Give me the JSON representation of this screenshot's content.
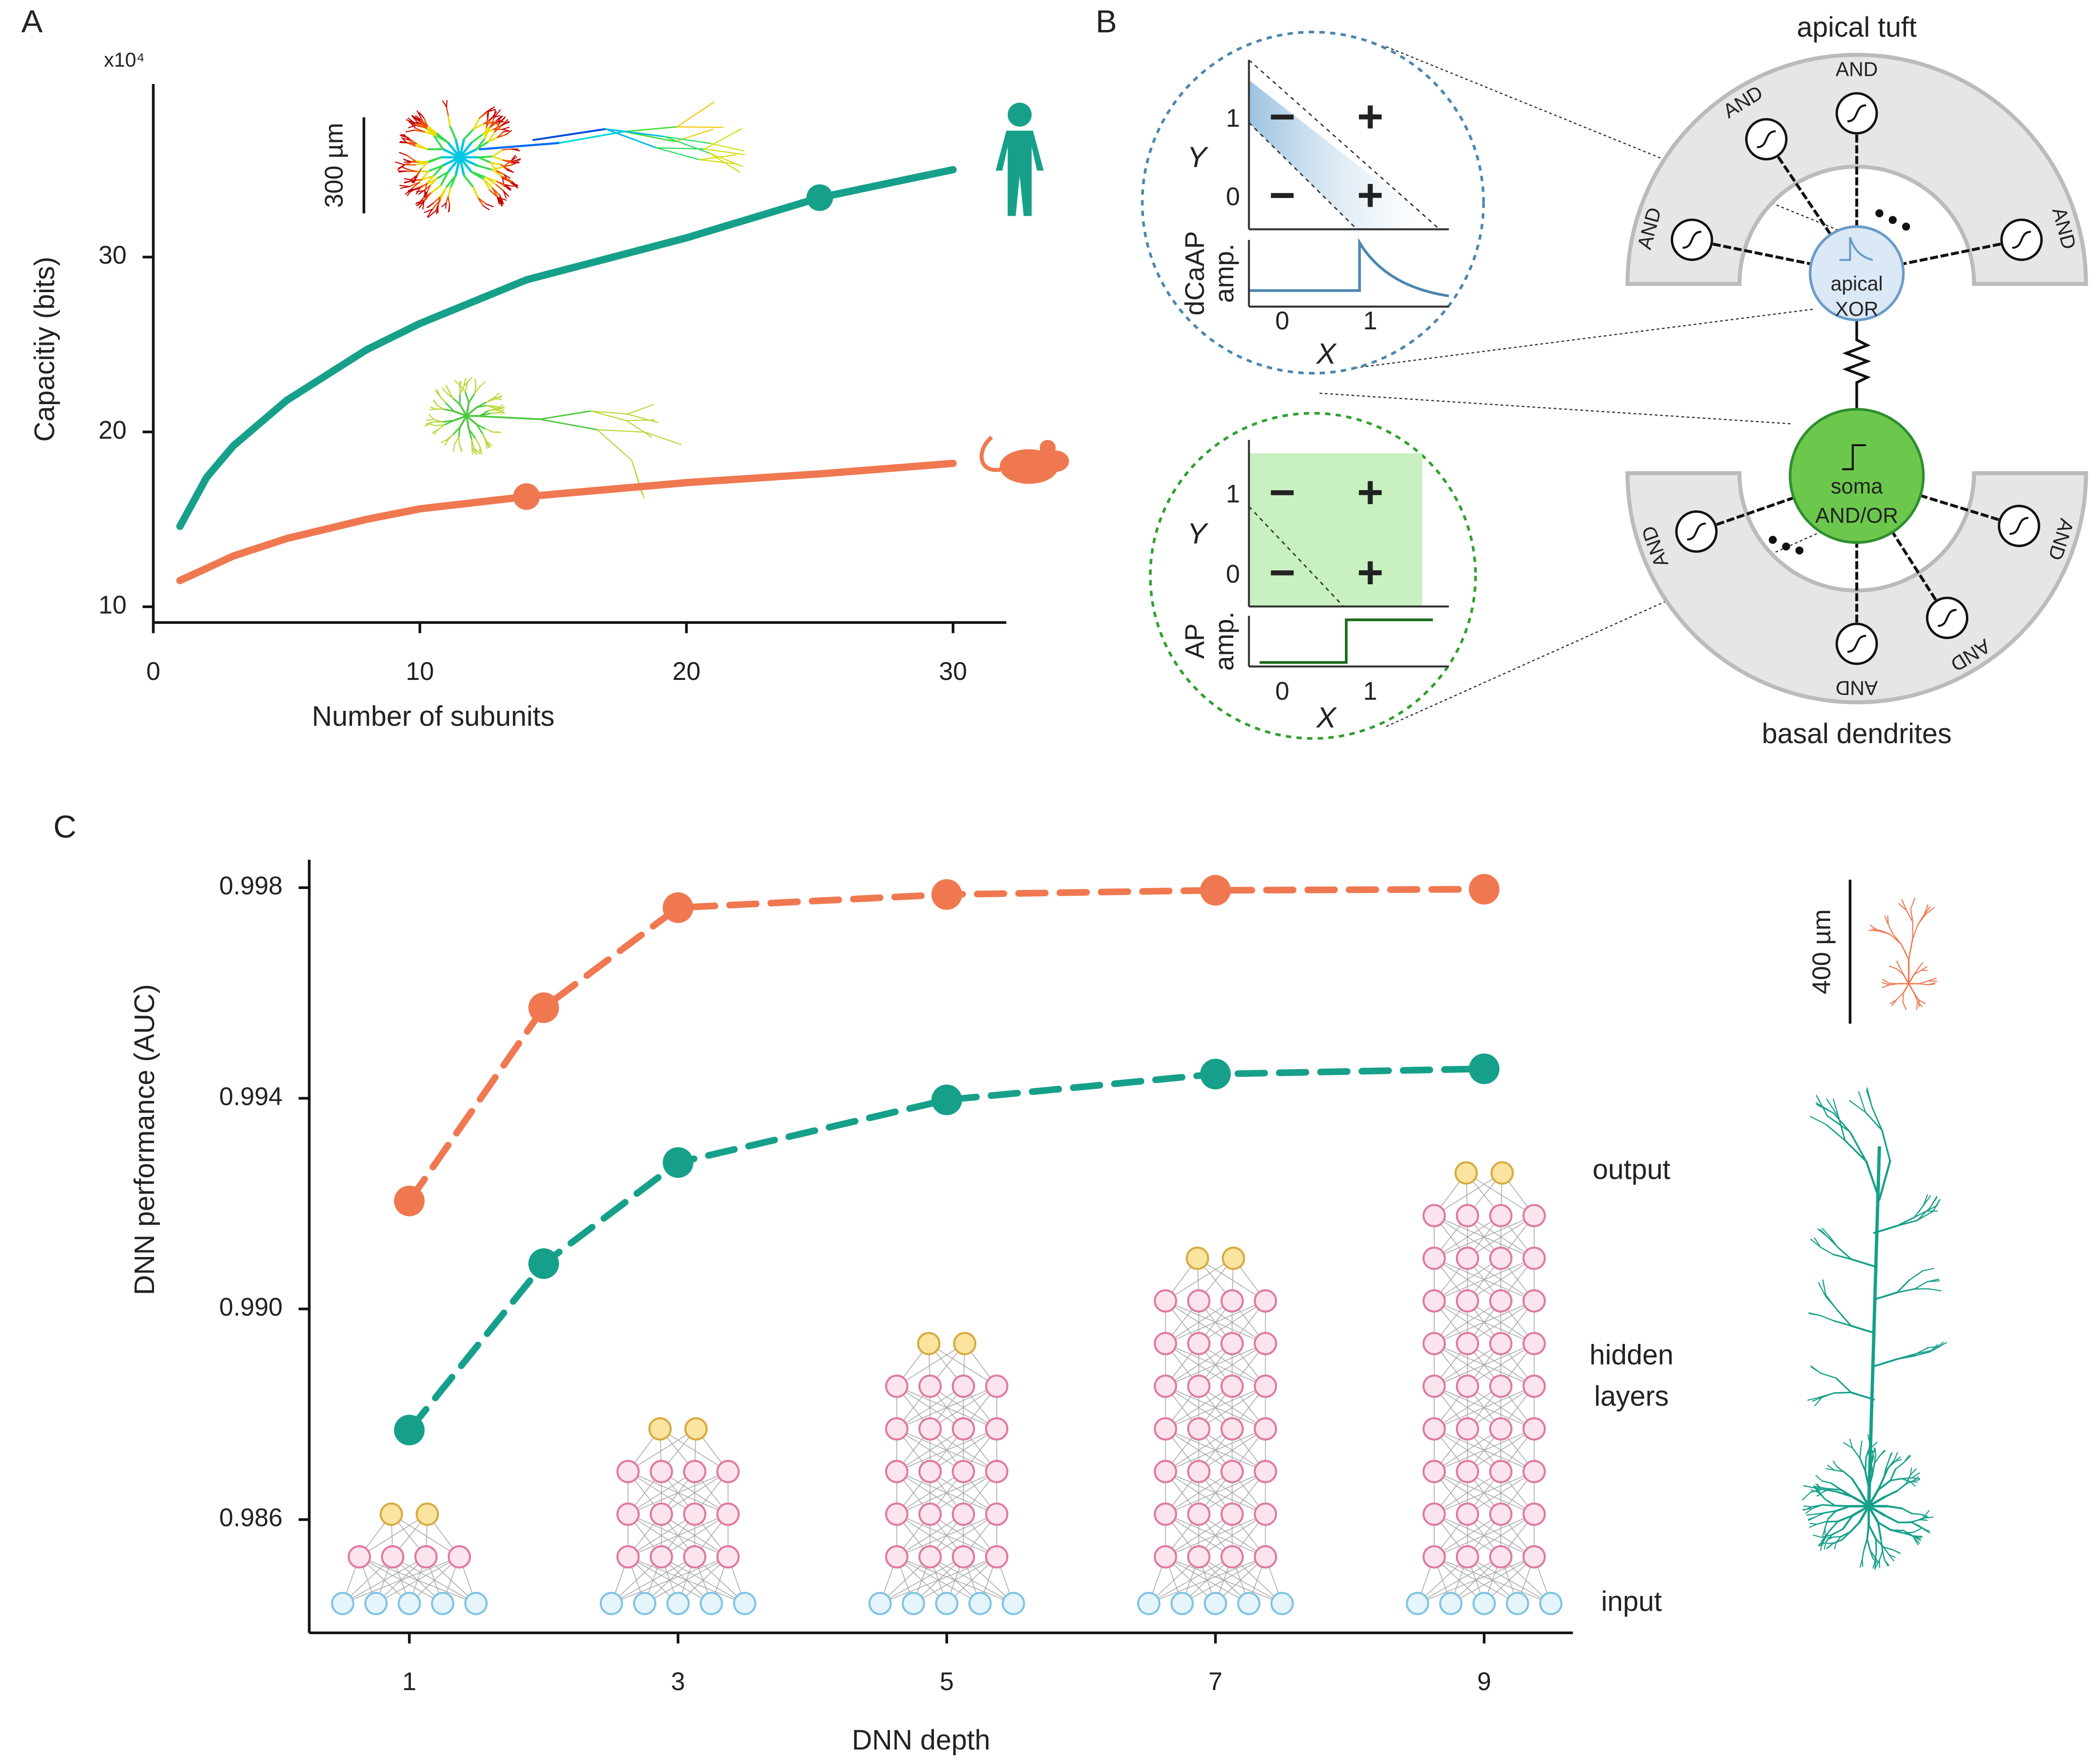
{
  "panels": [
    "A",
    "B",
    "C"
  ],
  "chart_data": [
    {
      "type": "line",
      "y_label": "Capacitiy (bits)",
      "x_label": "Number of subunits",
      "y_multiplier": "x10⁴",
      "scale_bar": "300 µm",
      "x": [
        1,
        2,
        3,
        5,
        8,
        10,
        14,
        20,
        25,
        30
      ],
      "series": [
        {
          "color": "#16a08a",
          "values": [
            14.6,
            17.4,
            19.2,
            21.8,
            24.7,
            26.2,
            28.7,
            31.1,
            33.4,
            35.0
          ],
          "marker_x": 25
        },
        {
          "color": "#f07850",
          "values": [
            11.5,
            12.2,
            12.9,
            13.9,
            15.0,
            15.6,
            16.3,
            17.1,
            17.6,
            18.2
          ],
          "marker_x": 14
        }
      ],
      "xlim": [
        0,
        32
      ],
      "ylim": [
        9.1,
        39.9
      ],
      "xticks": [
        0,
        10,
        20,
        30
      ],
      "yticks": [
        10,
        20,
        30
      ]
    },
    {
      "type": "line",
      "y_label": "DNN performance (AUC)",
      "x_label": "DNN depth",
      "x": [
        1,
        2,
        3,
        5,
        7,
        9
      ],
      "series": [
        {
          "color": "#f07850",
          "values": [
            0.99205,
            0.99572,
            0.99762,
            0.99787,
            0.99795,
            0.99797
          ],
          "dashed": true,
          "points": true
        },
        {
          "color": "#16a08a",
          "values": [
            0.9877,
            0.99086,
            0.99278,
            0.99397,
            0.99446,
            0.99456
          ],
          "dashed": true,
          "points": true
        }
      ],
      "xlim": [
        0.255,
        9.66
      ],
      "ylim": [
        0.98385,
        0.99853
      ],
      "xticks": [
        1,
        3,
        5,
        7,
        9
      ],
      "yticks": [
        0.986,
        {
          "value": 0.99,
          "label": "0.990"
        },
        0.994,
        0.998
      ],
      "network_labels": {
        "output": "output",
        "hidden": [
          "hidden",
          "layers"
        ],
        "input": "input"
      },
      "scale_bar": "400 µm"
    }
  ],
  "diagram": {
    "apical_tuft": "apical tuft",
    "basal_dendrites": "basal dendrites",
    "apical_node": [
      "apical",
      "XOR"
    ],
    "soma_node": [
      "soma",
      "AND/OR"
    ],
    "tuft_branches": [
      "AND",
      "AND",
      "AND",
      "AND"
    ],
    "basal_branches": [
      "AND",
      "AND",
      "AND",
      "AND"
    ],
    "insets": [
      {
        "y_label": "Y",
        "x_label": "X",
        "amp_label": [
          "dCaAP",
          "amp."
        ],
        "xticks": [
          0,
          1
        ],
        "yticks": [
          1,
          0
        ],
        "signs": [
          "−",
          "+",
          "−",
          "+"
        ]
      },
      {
        "y_label": "Y",
        "x_label": "X",
        "amp_label": [
          "AP",
          "amp."
        ],
        "xticks": [
          0,
          1
        ],
        "yticks": [
          1,
          0
        ],
        "signs": [
          "−",
          "+",
          "−",
          "+"
        ]
      }
    ]
  }
}
